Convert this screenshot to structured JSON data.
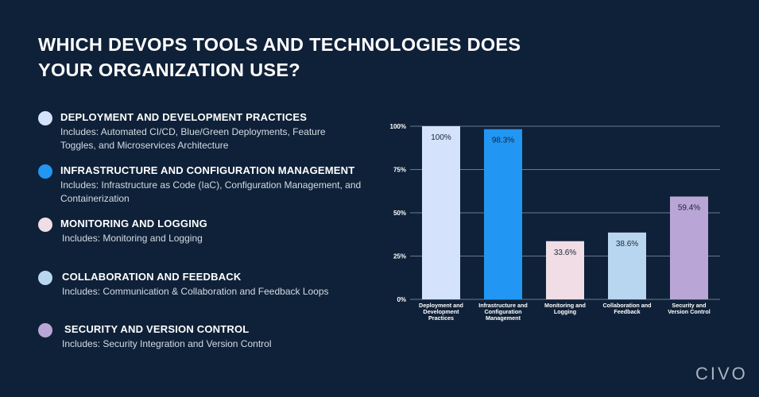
{
  "title_line1": "WHICH DEVOPS TOOLS AND TECHNOLOGIES DOES",
  "title_line2": "YOUR ORGANIZATION USE?",
  "legend": [
    {
      "title": "DEPLOYMENT AND DEVELOPMENT PRACTICES",
      "desc": "Includes: Automated CI/CD, Blue/Green Deployments, Feature Toggles, and Microservices Architecture",
      "color": "#d4e2fb"
    },
    {
      "title": "INFRASTRUCTURE AND CONFIGURATION MANAGEMENT",
      "desc": "Includes: Infrastructure as Code (IaC), Configuration Management, and Containerization",
      "color": "#2196f3"
    },
    {
      "title": "MONITORING AND LOGGING",
      "desc": "Includes: Monitoring and Logging",
      "color": "#f0dde6"
    },
    {
      "title": "COLLABORATION AND FEEDBACK",
      "desc": "Includes: Communication & Collaboration and Feedback Loops",
      "color": "#b9d6f0"
    },
    {
      "title": "SECURITY AND VERSION CONTROL",
      "desc": "Includes: Security Integration and Version Control",
      "color": "#b9a6d6"
    }
  ],
  "chart_data": {
    "type": "bar",
    "categories": [
      [
        "Deployment and",
        "Development",
        "Practices"
      ],
      [
        "Infrastructure and",
        "Configuration",
        "Management"
      ],
      [
        "Monitoring and",
        "Logging"
      ],
      [
        "Collaboration and",
        "Feedback"
      ],
      [
        "Security and",
        "Version Control"
      ]
    ],
    "values": [
      100,
      98.3,
      33.6,
      38.6,
      59.4
    ],
    "value_labels": [
      "100%",
      "98.3%",
      "33.6%",
      "38.6%",
      "59.4%"
    ],
    "colors": [
      "#d4e2fb",
      "#2196f3",
      "#f0dde6",
      "#b9d6f0",
      "#b9a6d6"
    ],
    "yticks": [
      0,
      25,
      50,
      75,
      100
    ],
    "ytick_labels": [
      "0%",
      "25%",
      "50%",
      "75%",
      "100%"
    ],
    "ylim": [
      0,
      100
    ],
    "grid": true,
    "legend": "left"
  },
  "logo": "CIVO"
}
